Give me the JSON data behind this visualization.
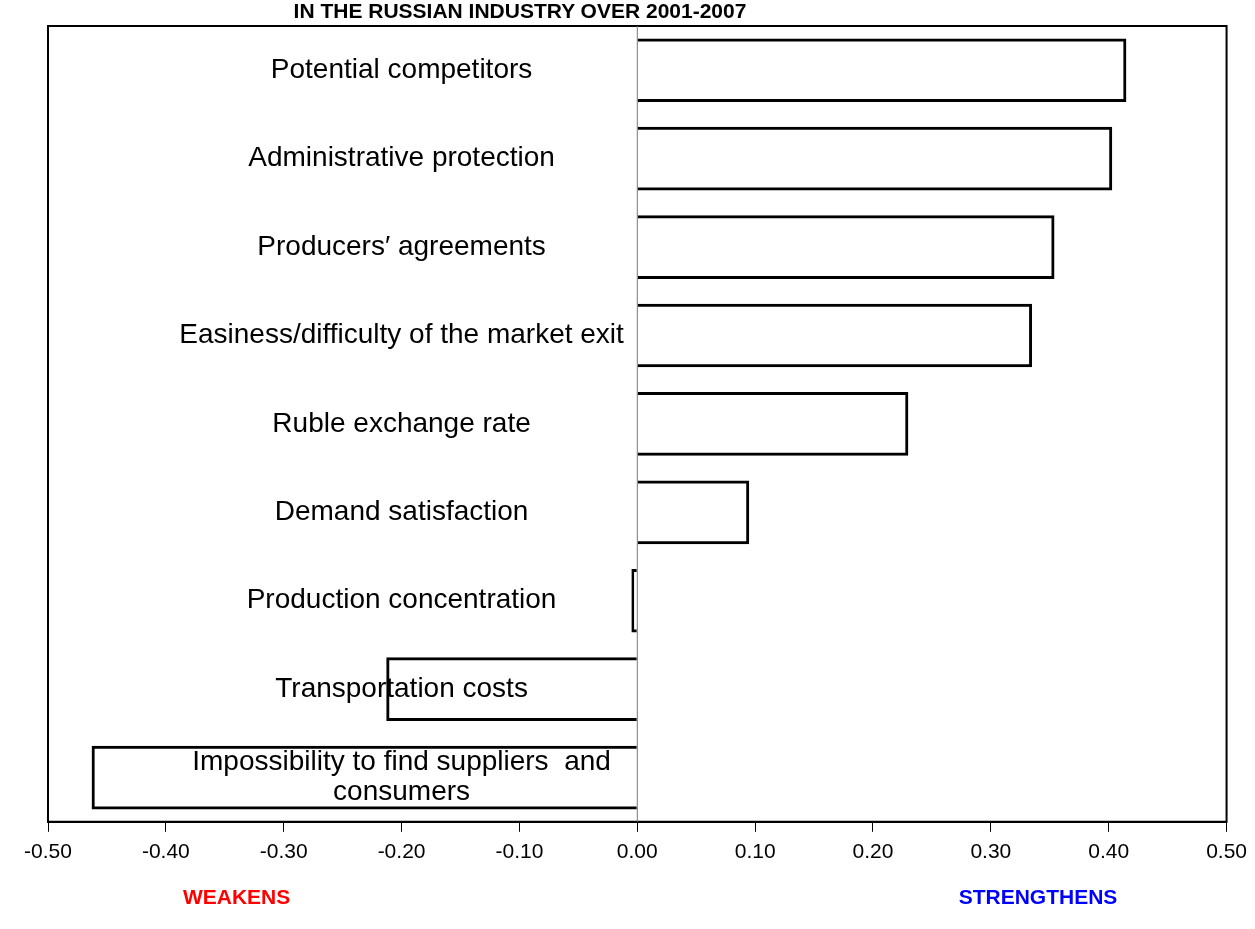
{
  "chart_data": {
    "type": "bar",
    "orientation": "horizontal",
    "title": "IN THE RUSSIAN INDUSTRY OVER 2001-2007",
    "categories": [
      "Potential competitors",
      "Administrative protection",
      "Producers′ agreements",
      "Easiness/difficulty of the market exit",
      "Ruble exchange rate",
      "Demand satisfaction",
      "Production concentration",
      "Transportation costs",
      "Impossibility to find suppliers  and consumers"
    ],
    "values": [
      0.415,
      0.403,
      0.354,
      0.335,
      0.23,
      0.095,
      -0.005,
      -0.213,
      -0.463
    ],
    "color": "#000000",
    "xlim": [
      -0.5,
      0.5
    ],
    "xticks": [
      {
        "value": -0.5,
        "label": "-0.50"
      },
      {
        "value": -0.4,
        "label": "-0.40"
      },
      {
        "value": -0.3,
        "label": "-0.30"
      },
      {
        "value": -0.2,
        "label": "-0.20"
      },
      {
        "value": -0.1,
        "label": "-0.10"
      },
      {
        "value": 0,
        "label": "0.00"
      },
      {
        "value": 0.1,
        "label": "0.10"
      },
      {
        "value": 0.2,
        "label": "0.20"
      },
      {
        "value": 0.3,
        "label": "0.30"
      },
      {
        "value": 0.4,
        "label": "0.40"
      },
      {
        "value": 0.5,
        "label": "0.50"
      }
    ],
    "annotations": [
      "WEAKENS",
      "STRENGTHENS"
    ],
    "legend": false,
    "grid": false
  }
}
